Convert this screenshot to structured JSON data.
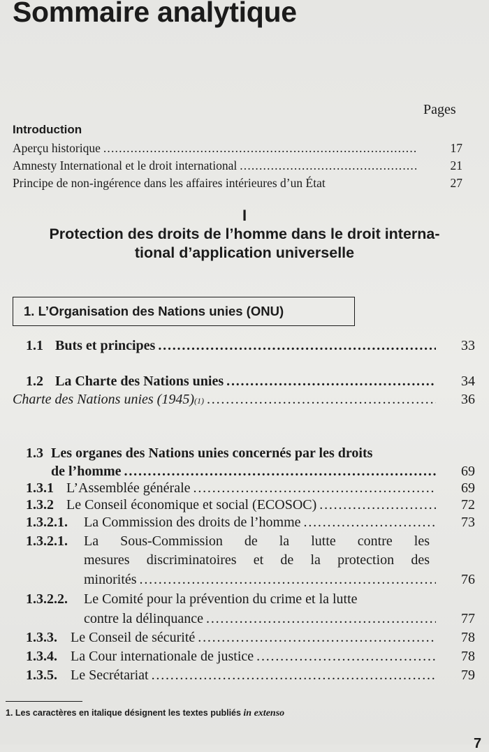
{
  "title": "Sommaire analytique",
  "pages_label": "Pages",
  "introduction": {
    "heading": "Introduction",
    "items": [
      {
        "title": "Aperçu historique",
        "page": "17"
      },
      {
        "title": "Amnesty International et le droit international",
        "page": "21"
      },
      {
        "title": "Principe de non-ingérence dans les affaires intérieures d’un État",
        "page": "27"
      }
    ]
  },
  "part": {
    "number": "I",
    "title_lines": [
      "Protection des droits de l’homme dans le droit interna-",
      "tional d’application universelle"
    ]
  },
  "chapter": {
    "title": "1. L’Organisation des Nations unies (ONU)"
  },
  "entries": [
    {
      "number": "1.1",
      "title": "Buts et principes",
      "page": "33"
    },
    {
      "number": "1.2",
      "title": "La Charte des Nations unies",
      "page": "34"
    },
    {
      "title": "Charte des Nations unies (1945)",
      "note": "(1)",
      "page": "36"
    },
    {
      "number": "1.3",
      "title_lines": [
        "Les organes des Nations unies concernés par les droits",
        "de l’homme"
      ],
      "page": "69"
    },
    {
      "number": "1.3.1",
      "title": "L’Assemblée générale",
      "page": "69"
    },
    {
      "number": "1.3.2",
      "title": "Le Conseil économique et social (ECOSOC)",
      "page": "72"
    },
    {
      "number": "1.3.2.1.",
      "title": "La Commission des droits de l’homme",
      "page": "73"
    },
    {
      "number": "1.3.2.1.",
      "title_lines": [
        "La Sous-Commission de la lutte contre les",
        "mesures discriminatoires et de la protection des",
        "minorités"
      ],
      "page": "76"
    },
    {
      "number": "1.3.2.2.",
      "title_lines": [
        "Le Comité pour la prévention du crime et la lutte",
        "contre la délinquance"
      ],
      "page": "77"
    },
    {
      "number": "1.3.3.",
      "title": "Le Conseil de sécurité",
      "page": "78"
    },
    {
      "number": "1.3.4.",
      "title": "La Cour internationale de justice",
      "page": "78"
    },
    {
      "number": "1.3.5.",
      "title": "Le Secrétariat",
      "page": "79"
    }
  ],
  "footnote": {
    "text": "1. Les caractères en italique désignent les textes publiés ",
    "italic": "in extenso"
  },
  "folio": "7"
}
